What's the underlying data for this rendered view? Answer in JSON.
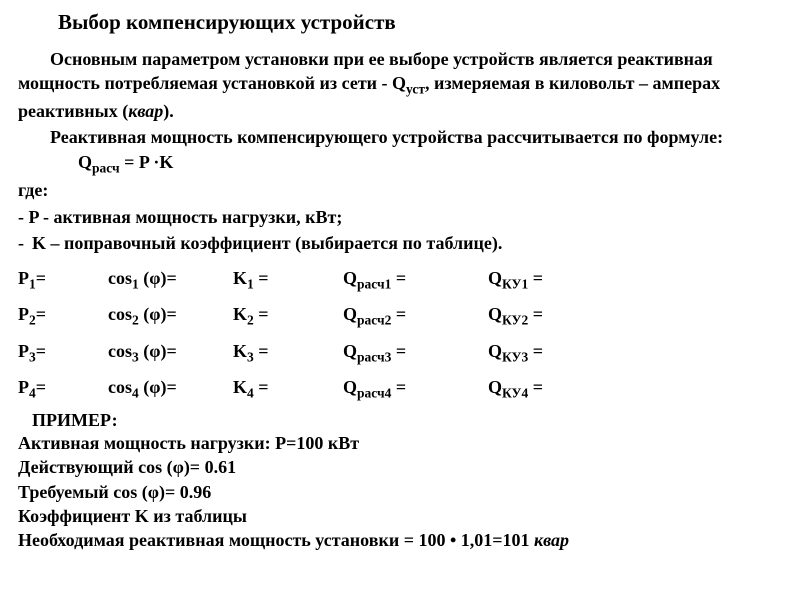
{
  "title": "Выбор компенсирующих устройств",
  "intro_p1_a": "Основным параметром установки при ее выборе устройств является реактивная мощность потребляемая установкой из сети - Q",
  "intro_p1_sub": "уст",
  "intro_p1_b": ", измеряемая в киловольт – амперах реактивных (",
  "intro_p1_kvar": "квар",
  "intro_p1_c": ").",
  "intro_p2": "Реактивная мощность компенсирующего устройства рассчитывается по формуле:",
  "formula_a": "Q",
  "formula_sub": "расч",
  "formula_b": " = P ·K",
  "where_label": "где:",
  "def_p": "- P - активная мощность нагрузки, кВт;",
  "bullet_dash": "-",
  "def_k": "K – поправочный коэффициент (выбирается по таблице).",
  "rows": [
    {
      "p": "P",
      "pi": "1",
      "eq": "=",
      "cos": "cos",
      "ci": "1",
      "phi": " (φ)=",
      "k": "K",
      "ki": "1",
      "qr": "Q",
      "qri": "расч1",
      "qk": "Q",
      "qki": "КУ1"
    },
    {
      "p": "P",
      "pi": "2",
      "eq": "=",
      "cos": "cos",
      "ci": "2",
      "phi": " (φ)=",
      "k": "K",
      "ki": "2",
      "qr": "Q",
      "qri": "расч2",
      "qk": "Q",
      "qki": "КУ2"
    },
    {
      "p": "P",
      "pi": "3",
      "eq": "=",
      "cos": "cos",
      "ci": "3",
      "phi": " (φ)=",
      "k": "K",
      "ki": "3",
      "qr": "Q",
      "qri": "расч3",
      "qk": "Q",
      "qki": "КУ3"
    },
    {
      "p": "P",
      "pi": "4",
      "eq": "=",
      "cos": "cos",
      "ci": "4",
      "phi": " (φ)=",
      "k": "K",
      "ki": "4",
      "qr": "Q",
      "qri": "расч4",
      "qk": "Q",
      "qki": "КУ4"
    }
  ],
  "example_title": "ПРИМЕР:",
  "ex1": "Активная мощность нагрузки: P=100 кВт",
  "ex2": "Действующий cos (φ)= 0.61",
  "ex3": "Требуемый cos (φ)= 0.96",
  "ex4": "Коэффициент K из таблицы",
  "ex5_a": "Необходимая реактивная мощность установки = 100 • 1,01=101 ",
  "ex5_kvar": "квар"
}
